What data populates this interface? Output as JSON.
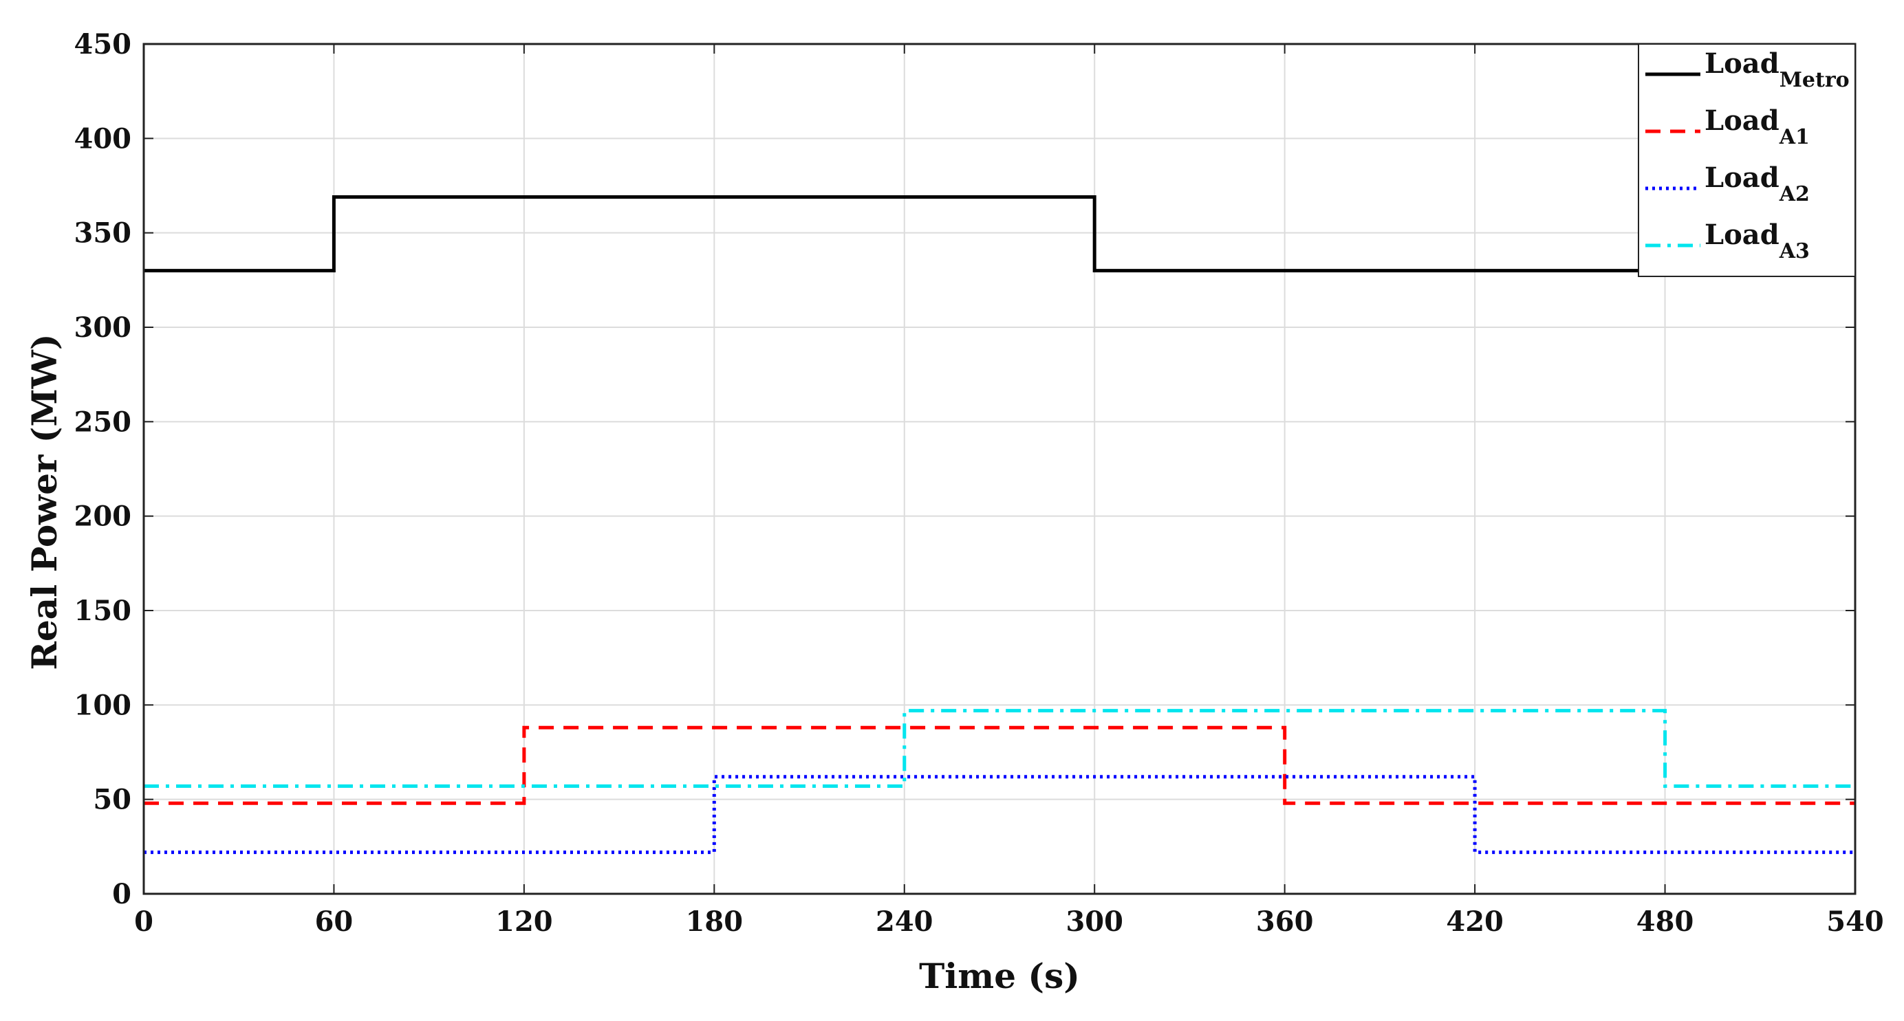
{
  "chart_data": {
    "type": "line",
    "title": "",
    "xlabel": "Time (s)",
    "ylabel": "Real Power (MW)",
    "xlim": [
      0,
      540
    ],
    "ylim": [
      0,
      450
    ],
    "xticks": [
      0,
      60,
      120,
      180,
      240,
      300,
      360,
      420,
      480,
      540
    ],
    "yticks": [
      0,
      50,
      100,
      150,
      200,
      250,
      300,
      350,
      400,
      450
    ],
    "grid": true,
    "legend_position": "top-right",
    "series": [
      {
        "name": "Load",
        "name_subscript": "Metro",
        "color": "#000000",
        "style": "solid",
        "x": [
          0,
          60,
          60,
          300,
          300,
          540
        ],
        "y": [
          330,
          330,
          369,
          369,
          330,
          330
        ]
      },
      {
        "name": "Load",
        "name_subscript": "A1",
        "color": "#ff0000",
        "style": "dashed",
        "x": [
          0,
          120,
          120,
          360,
          360,
          540
        ],
        "y": [
          48,
          48,
          88,
          88,
          48,
          48
        ]
      },
      {
        "name": "Load",
        "name_subscript": "A2",
        "color": "#0000ff",
        "style": "dotted",
        "x": [
          0,
          180,
          180,
          420,
          420,
          540
        ],
        "y": [
          22,
          22,
          62,
          62,
          22,
          22
        ]
      },
      {
        "name": "Load",
        "name_subscript": "A3",
        "color": "#00e5ee",
        "style": "dashdot",
        "x": [
          0,
          240,
          240,
          480,
          480,
          540
        ],
        "y": [
          57,
          57,
          97,
          97,
          57,
          57
        ]
      }
    ]
  }
}
